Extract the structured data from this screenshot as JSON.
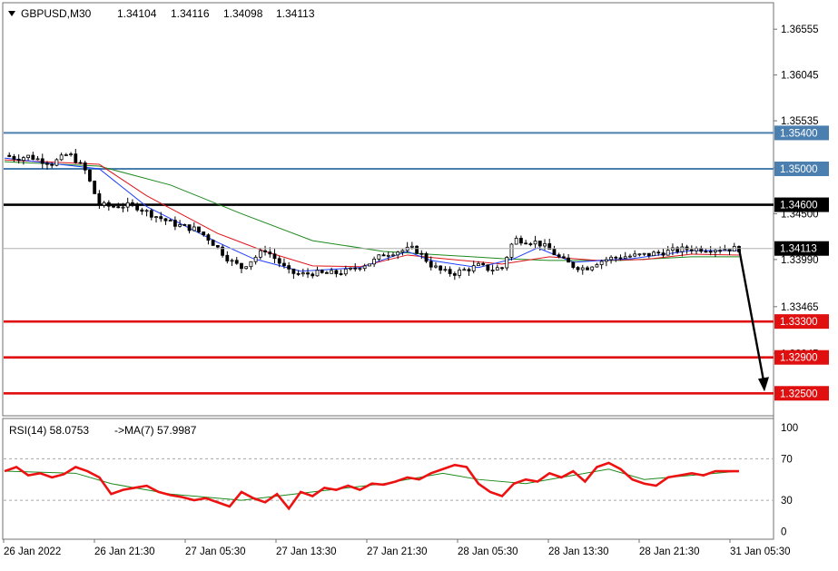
{
  "header": {
    "symbol": "GBPUSD,M30",
    "open": "1.34104",
    "high": "1.34116",
    "low": "1.34098",
    "close": "1.34113"
  },
  "rsi_header": {
    "label": "RSI(14) 58.0753",
    "ma_label": "->MA(7) 57.9987"
  },
  "colors": {
    "candle_outline": "#000000",
    "ma_blue": "#1f3fff",
    "ma_red": "#e0141a",
    "ma_green": "#1e8a1e",
    "resistance": "#4a7fb0",
    "pivot": "#000000",
    "support": "#e01010",
    "rsi_line": "#ee1111",
    "rsi_ma": "#1e8a1e"
  },
  "chart_data": [
    {
      "type": "candlestick",
      "title": "GBPUSD,M30",
      "ylim": [
        1.3225,
        1.3685
      ],
      "y_ticks": [
        "1.36555",
        "1.36045",
        "1.35535",
        "1.35010",
        "1.34500",
        "1.33990",
        "1.33465",
        "1.32945"
      ],
      "x_ticks": [
        "26 Jan 2022",
        "26 Jan 21:30",
        "27 Jan 05:30",
        "27 Jan 13:30",
        "27 Jan 21:30",
        "28 Jan 05:30",
        "28 Jan 13:30",
        "28 Jan 21:30",
        "31 Jan 05:30"
      ],
      "price_path_x": [
        0,
        5,
        10,
        15,
        20,
        24,
        27,
        30,
        34,
        40,
        45,
        50,
        55,
        60,
        65,
        70,
        75,
        80,
        85,
        90,
        95,
        100,
        105,
        110,
        115,
        120,
        125,
        130,
        135,
        140,
        145,
        150,
        155,
        160,
        165,
        170,
        173,
        176,
        180,
        185,
        190,
        195,
        200,
        205,
        210,
        215,
        220,
        225,
        230,
        235,
        240,
        245,
        250,
        255,
        260,
        265,
        270,
        275,
        280,
        285,
        290,
        295,
        300,
        305,
        310
      ],
      "price_path_y": [
        1.3515,
        1.3512,
        1.3514,
        1.351,
        1.3506,
        1.3512,
        1.3517,
        1.351,
        1.3498,
        1.346,
        1.3458,
        1.3459,
        1.3459,
        1.3452,
        1.3446,
        1.344,
        1.3436,
        1.3433,
        1.3425,
        1.3412,
        1.3398,
        1.339,
        1.34,
        1.341,
        1.3398,
        1.3385,
        1.3382,
        1.3384,
        1.3383,
        1.3384,
        1.3386,
        1.3392,
        1.3396,
        1.3405,
        1.3408,
        1.341,
        1.3411,
        1.3404,
        1.3393,
        1.3385,
        1.3384,
        1.3388,
        1.3392,
        1.3388,
        1.339,
        1.3422,
        1.342,
        1.3418,
        1.341,
        1.3399,
        1.3392,
        1.3389,
        1.3396,
        1.34,
        1.3402,
        1.3403,
        1.3404,
        1.3406,
        1.3408,
        1.341,
        1.3411,
        1.3411,
        1.3411,
        1.3411,
        1.3411
      ],
      "ma_fast": [
        [
          0,
          1.3512
        ],
        [
          40,
          1.35
        ],
        [
          60,
          1.3458
        ],
        [
          90,
          1.3418
        ],
        [
          105,
          1.34
        ],
        [
          125,
          1.3386
        ],
        [
          150,
          1.339
        ],
        [
          170,
          1.3408
        ],
        [
          180,
          1.3398
        ],
        [
          200,
          1.339
        ],
        [
          215,
          1.34
        ],
        [
          225,
          1.3412
        ],
        [
          240,
          1.3396
        ],
        [
          265,
          1.34
        ],
        [
          290,
          1.3409
        ],
        [
          310,
          1.3409
        ]
      ],
      "ma_mid": [
        [
          0,
          1.351
        ],
        [
          40,
          1.3505
        ],
        [
          60,
          1.347
        ],
        [
          90,
          1.3428
        ],
        [
          110,
          1.3408
        ],
        [
          130,
          1.3392
        ],
        [
          150,
          1.3391
        ],
        [
          170,
          1.3404
        ],
        [
          185,
          1.34
        ],
        [
          210,
          1.3394
        ],
        [
          230,
          1.3402
        ],
        [
          250,
          1.3398
        ],
        [
          270,
          1.3399
        ],
        [
          290,
          1.3405
        ],
        [
          310,
          1.3404
        ]
      ],
      "ma_slow": [
        [
          0,
          1.3508
        ],
        [
          40,
          1.3503
        ],
        [
          70,
          1.3482
        ],
        [
          100,
          1.345
        ],
        [
          130,
          1.342
        ],
        [
          160,
          1.3408
        ],
        [
          185,
          1.3404
        ],
        [
          210,
          1.34
        ],
        [
          230,
          1.3398
        ],
        [
          260,
          1.3398
        ],
        [
          290,
          1.3402
        ],
        [
          310,
          1.3402
        ]
      ],
      "horizontal_lines": [
        {
          "label": "1.35400",
          "price": 1.354,
          "role": "resistance"
        },
        {
          "label": "1.35000",
          "price": 1.35,
          "role": "resistance"
        },
        {
          "label": "1.34600",
          "price": 1.346,
          "role": "pivot"
        },
        {
          "label": "1.33300",
          "price": 1.333,
          "role": "support"
        },
        {
          "label": "1.32900",
          "price": 1.329,
          "role": "support"
        },
        {
          "label": "1.32500",
          "price": 1.325,
          "role": "support"
        }
      ],
      "current_price": {
        "label": "1.34113",
        "price": 1.34113
      },
      "forecast_arrow": {
        "from": 1.3411,
        "to": 1.3251
      }
    },
    {
      "type": "line",
      "title": "RSI(14) 58.0753",
      "ylim": [
        0,
        100
      ],
      "y_ticks": [
        "100",
        "70",
        "30",
        "0"
      ],
      "levels": [
        70,
        30
      ],
      "rsi_x": [
        0,
        5,
        10,
        15,
        20,
        25,
        30,
        35,
        40,
        45,
        50,
        55,
        60,
        65,
        70,
        75,
        80,
        85,
        90,
        95,
        100,
        105,
        110,
        115,
        120,
        125,
        130,
        135,
        140,
        145,
        150,
        155,
        160,
        165,
        170,
        175,
        180,
        185,
        190,
        195,
        200,
        205,
        210,
        215,
        220,
        225,
        230,
        235,
        240,
        245,
        250,
        255,
        260,
        265,
        270,
        275,
        280,
        285,
        290,
        295,
        300,
        305,
        310
      ],
      "rsi_y": [
        58,
        62,
        54,
        56,
        52,
        55,
        62,
        58,
        52,
        36,
        40,
        42,
        44,
        38,
        35,
        33,
        30,
        32,
        28,
        24,
        38,
        32,
        28,
        36,
        22,
        38,
        34,
        42,
        40,
        44,
        40,
        46,
        45,
        48,
        52,
        50,
        56,
        60,
        64,
        62,
        46,
        38,
        34,
        46,
        50,
        48,
        56,
        52,
        58,
        48,
        62,
        66,
        60,
        50,
        46,
        44,
        52,
        54,
        56,
        54,
        58,
        58,
        58
      ],
      "rsi_ma": [
        [
          0,
          58
        ],
        [
          30,
          56
        ],
        [
          45,
          46
        ],
        [
          70,
          36
        ],
        [
          100,
          30
        ],
        [
          130,
          38
        ],
        [
          160,
          46
        ],
        [
          185,
          56
        ],
        [
          200,
          50
        ],
        [
          220,
          46
        ],
        [
          240,
          54
        ],
        [
          255,
          60
        ],
        [
          270,
          50
        ],
        [
          300,
          56
        ],
        [
          310,
          58
        ]
      ]
    }
  ]
}
